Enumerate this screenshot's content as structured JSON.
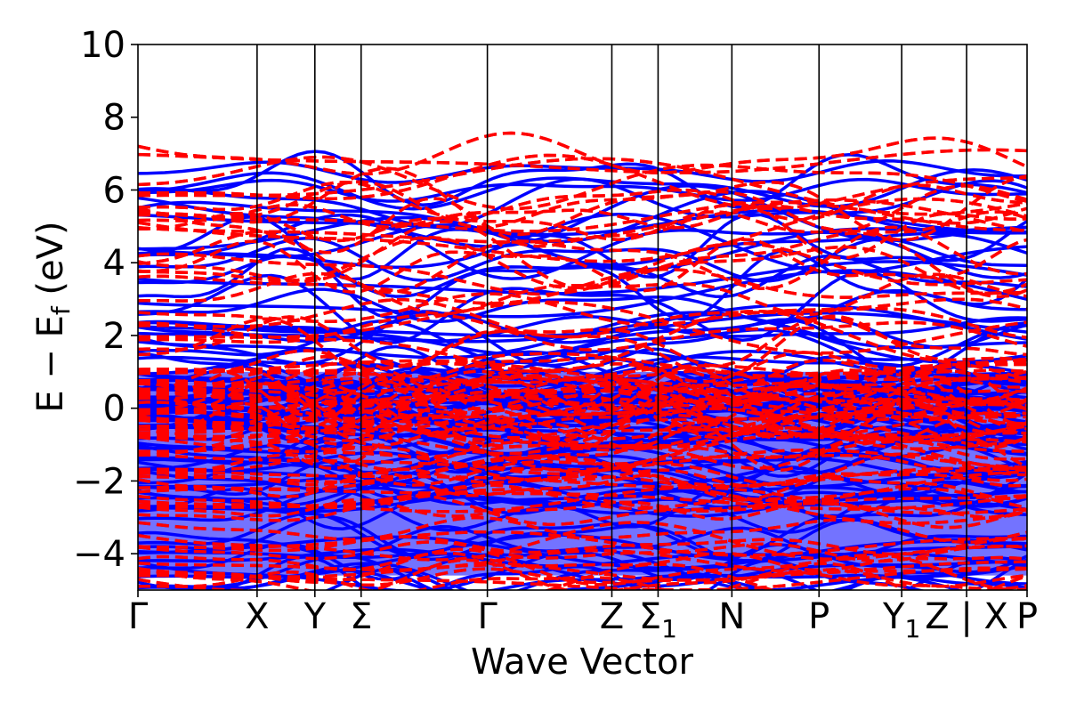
{
  "chart_data": {
    "type": "line",
    "title": "",
    "xlabel": "Wave Vector",
    "ylabel": {
      "main": "E − E",
      "sub": "f",
      "unit": " (eV)"
    },
    "ylim": [
      -5,
      10
    ],
    "yticks": [
      {
        "value": 10,
        "label": "10"
      },
      {
        "value": 8,
        "label": "8"
      },
      {
        "value": 6,
        "label": "6"
      },
      {
        "value": 4,
        "label": "4"
      },
      {
        "value": 2,
        "label": "2"
      },
      {
        "value": 0,
        "label": "0"
      },
      {
        "value": -2,
        "label": "−2"
      },
      {
        "value": -4,
        "label": "−4"
      }
    ],
    "xlim": [
      0,
      1
    ],
    "kpoints": [
      {
        "x": 0.0,
        "label": "Γ",
        "sub": ""
      },
      {
        "x": 0.134,
        "label": "X",
        "sub": ""
      },
      {
        "x": 0.199,
        "label": "Y",
        "sub": ""
      },
      {
        "x": 0.251,
        "label": "Σ",
        "sub": ""
      },
      {
        "x": 0.393,
        "label": "Γ",
        "sub": ""
      },
      {
        "x": 0.533,
        "label": "Z",
        "sub": ""
      },
      {
        "x": 0.585,
        "label": "Σ",
        "sub": "1"
      },
      {
        "x": 0.668,
        "label": "N",
        "sub": ""
      },
      {
        "x": 0.766,
        "label": "P",
        "sub": ""
      },
      {
        "x": 0.859,
        "label": "Y",
        "sub": "1"
      },
      {
        "x": 0.932,
        "label": "Z | X",
        "sub": ""
      },
      {
        "x": 1.0,
        "label": "P",
        "sub": ""
      }
    ],
    "series": [
      {
        "style": "solid",
        "color": "#0000ff"
      },
      {
        "style": "dashed",
        "color": "#ff0000"
      }
    ],
    "grid": false,
    "legend": "none"
  }
}
